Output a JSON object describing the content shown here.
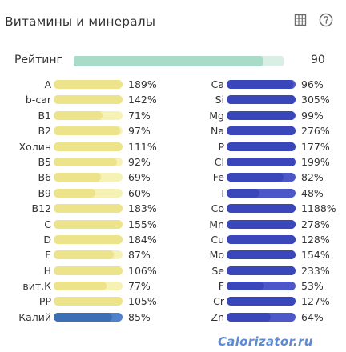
{
  "header": {
    "title": "Витамины и минералы",
    "table_icon": "table-grid-icon",
    "help_icon": "question-circle-icon"
  },
  "rating": {
    "label": "Рейтинг",
    "value": "90",
    "fill": 0.9
  },
  "colors": {
    "vitamin_bar": "#ede38a",
    "vitamin_bar_bg": "#f6f2b3",
    "potassium_bar": "#3b6fb6",
    "mineral_bar": "#3a47bb",
    "rating_bar": "#a8dcc8",
    "rating_bar_bg": "#d9efe6"
  },
  "vitamins": [
    {
      "label": "A",
      "value": "189%",
      "fill": 1.0
    },
    {
      "label": "b-car",
      "value": "142%",
      "fill": 1.0
    },
    {
      "label": "B1",
      "value": "71%",
      "fill": 0.71
    },
    {
      "label": "B2",
      "value": "97%",
      "fill": 0.97
    },
    {
      "label": "Холин",
      "value": "111%",
      "fill": 1.0
    },
    {
      "label": "B5",
      "value": "92%",
      "fill": 0.92
    },
    {
      "label": "B6",
      "value": "69%",
      "fill": 0.69
    },
    {
      "label": "B9",
      "value": "60%",
      "fill": 0.6
    },
    {
      "label": "B12",
      "value": "183%",
      "fill": 1.0
    },
    {
      "label": "C",
      "value": "155%",
      "fill": 1.0
    },
    {
      "label": "D",
      "value": "184%",
      "fill": 1.0
    },
    {
      "label": "E",
      "value": "87%",
      "fill": 0.87
    },
    {
      "label": "H",
      "value": "106%",
      "fill": 1.0
    },
    {
      "label": "вит.К",
      "value": "77%",
      "fill": 0.77
    },
    {
      "label": "PP",
      "value": "105%",
      "fill": 1.0
    },
    {
      "label": "Калий",
      "value": "85%",
      "fill": 0.85
    }
  ],
  "minerals": [
    {
      "label": "Ca",
      "value": "96%",
      "fill": 0.96
    },
    {
      "label": "Si",
      "value": "305%",
      "fill": 1.0
    },
    {
      "label": "Mg",
      "value": "99%",
      "fill": 0.99
    },
    {
      "label": "Na",
      "value": "276%",
      "fill": 1.0
    },
    {
      "label": "P",
      "value": "177%",
      "fill": 1.0
    },
    {
      "label": "Cl",
      "value": "199%",
      "fill": 1.0
    },
    {
      "label": "Fe",
      "value": "82%",
      "fill": 0.82
    },
    {
      "label": "I",
      "value": "48%",
      "fill": 0.48
    },
    {
      "label": "Co",
      "value": "1188%",
      "fill": 1.0
    },
    {
      "label": "Mn",
      "value": "278%",
      "fill": 1.0
    },
    {
      "label": "Cu",
      "value": "128%",
      "fill": 1.0
    },
    {
      "label": "Mo",
      "value": "154%",
      "fill": 1.0
    },
    {
      "label": "Se",
      "value": "233%",
      "fill": 1.0
    },
    {
      "label": "F",
      "value": "53%",
      "fill": 0.53
    },
    {
      "label": "Cr",
      "value": "127%",
      "fill": 1.0
    },
    {
      "label": "Zn",
      "value": "64%",
      "fill": 0.64
    }
  ],
  "watermark": "Calorizator.ru"
}
